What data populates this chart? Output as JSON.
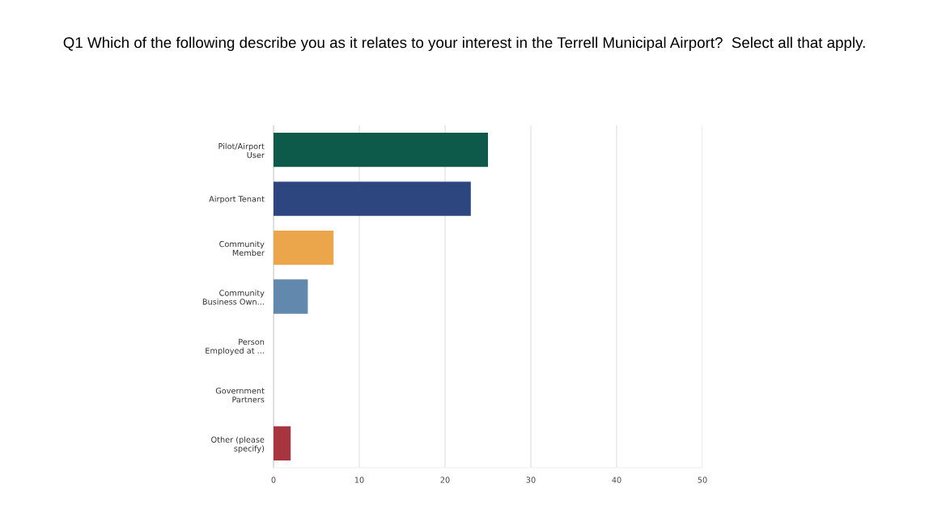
{
  "chart_data": {
    "type": "bar",
    "orientation": "horizontal",
    "title": "Q1 Which of the following describe you as it relates to your interest in the Terrell Municipal Airport?  Select all that apply.",
    "categories": [
      "Pilot/Airport\nUser",
      "Airport Tenant",
      "Community\nMember",
      "Community\nBusiness Own...",
      "Person\nEmployed at ...",
      "Government\nPartners",
      "Other (please\nspecify)"
    ],
    "values": [
      25,
      23,
      7,
      4,
      0,
      0,
      2
    ],
    "colors": [
      "#0d5a4a",
      "#2e4680",
      "#eba54a",
      "#6289ad",
      "#888888",
      "#888888",
      "#a83440"
    ],
    "xlim": [
      0,
      50
    ],
    "xticks": [
      0,
      10,
      20,
      30,
      40,
      50
    ],
    "grid": "x"
  }
}
